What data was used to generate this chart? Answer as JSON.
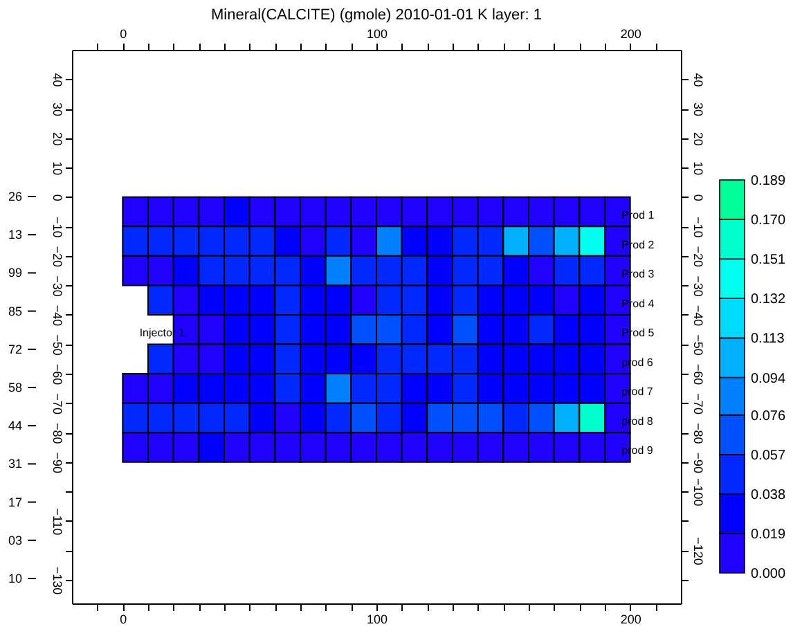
{
  "chart_data": {
    "type": "heatmap",
    "title": "Mineral(CALCITE) (gmole) 2010-01-01     K layer: 1",
    "x": [
      5,
      15,
      25,
      35,
      45,
      55,
      65,
      75,
      85,
      95,
      105,
      115,
      125,
      135,
      145,
      155,
      165,
      175,
      185,
      195
    ],
    "y": [
      -5,
      -15,
      -25,
      -35,
      -45,
      -55,
      -65,
      -75,
      -85
    ],
    "cells": [
      [
        0.01,
        0.01,
        0.01,
        0.01,
        0.03,
        0.01,
        0.01,
        0.01,
        0.01,
        0.01,
        0.01,
        0.01,
        0.01,
        0.01,
        0.01,
        0.01,
        0.01,
        0.01,
        0.01,
        0.01
      ],
      [
        0.05,
        0.05,
        0.05,
        0.05,
        0.05,
        0.05,
        0.03,
        0.01,
        0.05,
        0.01,
        0.085,
        0.03,
        0.03,
        0.05,
        0.05,
        0.1,
        0.065,
        0.1,
        0.14,
        0.01
      ],
      [
        0.01,
        0.01,
        0.03,
        0.05,
        0.05,
        0.05,
        0.05,
        0.03,
        0.085,
        0.05,
        0.05,
        0.05,
        0.03,
        0.05,
        0.05,
        0.03,
        0.01,
        0.05,
        0.05,
        0.01
      ],
      [
        null,
        0.05,
        0.01,
        0.03,
        0.03,
        0.03,
        0.05,
        0.03,
        0.03,
        0.01,
        0.05,
        0.05,
        0.03,
        0.05,
        0.03,
        0.03,
        0.03,
        0.01,
        0.03,
        0.01
      ],
      [
        null,
        null,
        0.01,
        0.01,
        0.03,
        0.03,
        0.05,
        0.03,
        0.03,
        0.065,
        0.065,
        0.05,
        0.03,
        0.065,
        0.03,
        0.03,
        0.05,
        0.03,
        0.03,
        0.01
      ],
      [
        null,
        0.05,
        0.01,
        0.01,
        0.03,
        0.03,
        0.05,
        0.03,
        0.03,
        0.03,
        0.05,
        0.05,
        0.05,
        0.05,
        0.03,
        0.03,
        0.03,
        0.03,
        0.03,
        0.01
      ],
      [
        0.01,
        0.01,
        0.03,
        0.03,
        0.03,
        0.03,
        0.05,
        0.03,
        0.085,
        0.05,
        0.05,
        0.03,
        0.03,
        0.05,
        0.03,
        0.03,
        0.03,
        0.03,
        0.03,
        0.01
      ],
      [
        0.05,
        0.05,
        0.05,
        0.05,
        0.05,
        0.03,
        0.01,
        0.03,
        0.05,
        0.065,
        0.05,
        0.03,
        0.065,
        0.065,
        0.065,
        0.05,
        0.065,
        0.1,
        0.16,
        0.01
      ],
      [
        0.01,
        0.01,
        0.01,
        0.03,
        0.01,
        0.01,
        0.01,
        0.01,
        0.01,
        0.01,
        0.01,
        0.01,
        0.01,
        0.01,
        0.01,
        0.01,
        0.01,
        0.01,
        0.01,
        0.01
      ]
    ],
    "colors": [
      "#2000ff",
      "#0000ff",
      "#0028ff",
      "#0050ff",
      "#0080ff",
      "#00b0ff",
      "#00dcff",
      "#00ffee",
      "#00ffcc",
      "#00ff99"
    ],
    "clim": [
      0,
      0.189
    ],
    "cticks": [
      {
        "value": 0,
        "label": "0.000"
      },
      {
        "value": 0.019,
        "label": "0.019"
      },
      {
        "value": 0.038,
        "label": "0.038"
      },
      {
        "value": 0.057,
        "label": "0.057"
      },
      {
        "value": 0.076,
        "label": "0.076"
      },
      {
        "value": 0.094,
        "label": "0.094"
      },
      {
        "value": 0.113,
        "label": "0.113"
      },
      {
        "value": 0.132,
        "label": "0.132"
      },
      {
        "value": 0.151,
        "label": "0.151"
      },
      {
        "value": 0.17,
        "label": "0.170"
      },
      {
        "value": 0.189,
        "label": "0.189"
      }
    ],
    "xlim": [
      -20,
      220
    ],
    "xticks": [
      {
        "value": -10,
        "label": null
      },
      0,
      {
        "value": 10,
        "label": null
      },
      {
        "value": 20,
        "label": null
      },
      {
        "value": 30,
        "label": null
      },
      {
        "value": 40,
        "label": null
      },
      {
        "value": 50,
        "label": null
      },
      {
        "value": 60,
        "label": null
      },
      {
        "value": 70,
        "label": null
      },
      {
        "value": 80,
        "label": null
      },
      {
        "value": 90,
        "label": null
      },
      100,
      {
        "value": 110,
        "label": null
      },
      {
        "value": 120,
        "label": null
      },
      {
        "value": 130,
        "label": null
      },
      {
        "value": 140,
        "label": null
      },
      {
        "value": 150,
        "label": null
      },
      {
        "value": 160,
        "label": null
      },
      {
        "value": 170,
        "label": null
      },
      {
        "value": 180,
        "label": null
      },
      {
        "value": 190,
        "label": null
      },
      200,
      {
        "value": 210,
        "label": null
      }
    ],
    "x2lim": [
      -20,
      220
    ],
    "x2ticks": [
      {
        "value": -10,
        "label": null
      },
      0,
      {
        "value": 10,
        "label": null
      },
      {
        "value": 20,
        "label": null
      },
      {
        "value": 30,
        "label": null
      },
      {
        "value": 40,
        "label": null
      },
      {
        "value": 50,
        "label": null
      },
      {
        "value": 60,
        "label": null
      },
      {
        "value": 70,
        "label": null
      },
      {
        "value": 80,
        "label": null
      },
      {
        "value": 90,
        "label": null
      },
      100,
      {
        "value": 110,
        "label": null
      },
      {
        "value": 120,
        "label": null
      },
      {
        "value": 130,
        "label": null
      },
      {
        "value": 140,
        "label": null
      },
      {
        "value": 150,
        "label": null
      },
      {
        "value": 160,
        "label": null
      },
      {
        "value": 170,
        "label": null
      },
      {
        "value": 180,
        "label": null
      },
      {
        "value": 190,
        "label": null
      },
      200,
      {
        "value": 210,
        "label": null
      }
    ],
    "ylim": [
      -138,
      50
    ],
    "yticks": [
      40,
      30,
      20,
      10,
      0,
      -10,
      -20,
      -30,
      -40,
      -50,
      -60,
      -70,
      -80,
      -90,
      {
        "value": -100,
        "label": null
      },
      -110,
      {
        "value": -120,
        "label": null
      },
      -130
    ],
    "y2lim": [
      -138,
      50
    ],
    "y2ticks": [
      40,
      30,
      20,
      10,
      0,
      -10,
      -20,
      -30,
      -40,
      -50,
      -60,
      -70,
      -80,
      -90,
      -100,
      {
        "value": -110,
        "label": null
      },
      -120,
      {
        "value": -130,
        "label": null
      }
    ],
    "annotations": [
      "Injector 1",
      "Prod 1",
      "Prod 2",
      "Prod 3",
      "Prod 4",
      "Prod 5",
      "prod 6",
      "prod 7",
      "prod 8",
      "prod 9",
      "26",
      "13",
      "99",
      "85",
      "72",
      "58",
      "44",
      "31",
      "17",
      "03",
      "10"
    ],
    "grid": false
  }
}
